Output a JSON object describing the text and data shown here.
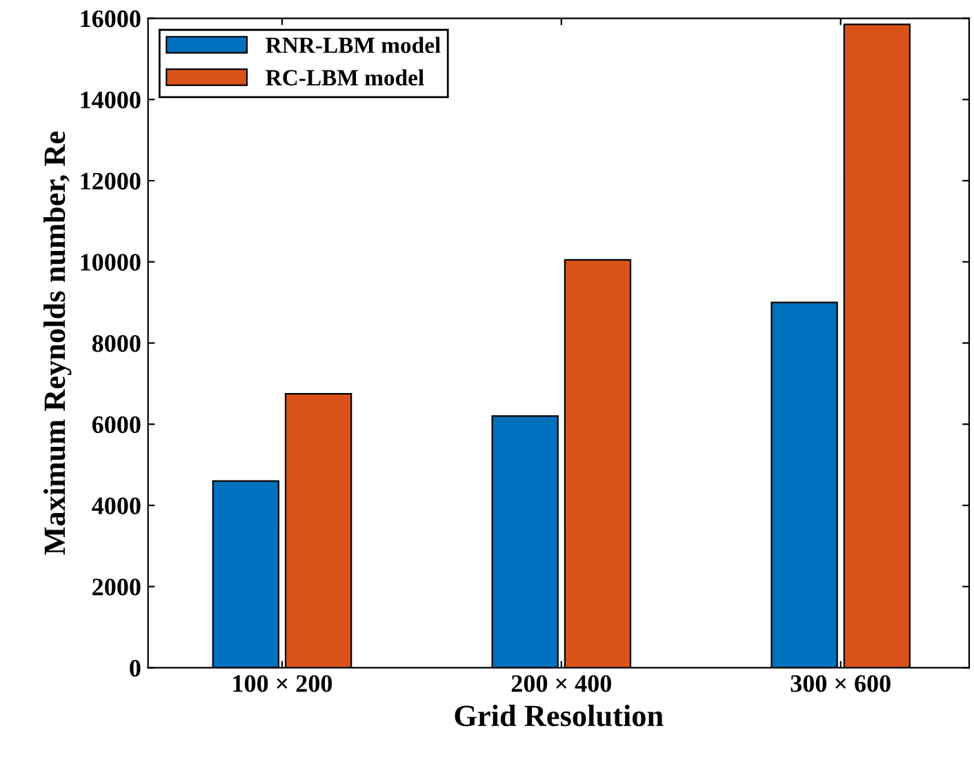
{
  "chart_data": {
    "type": "bar",
    "xlabel": "Grid Resolution",
    "ylabel": "Maximum Reynolds number, Re",
    "categories": [
      "100 × 200",
      "200 × 400",
      "300 × 600"
    ],
    "series": [
      {
        "name": "RNR-LBM model",
        "color": "#0072bd",
        "values": [
          4600,
          6200,
          9000
        ]
      },
      {
        "name": "RC-LBM model",
        "color": "#d95319",
        "values": [
          6750,
          10050,
          15850
        ]
      }
    ],
    "ylim": [
      0,
      16000
    ],
    "yticks": [
      0,
      2000,
      4000,
      6000,
      8000,
      10000,
      12000,
      14000,
      16000
    ],
    "grid": false,
    "legend": "top left"
  }
}
